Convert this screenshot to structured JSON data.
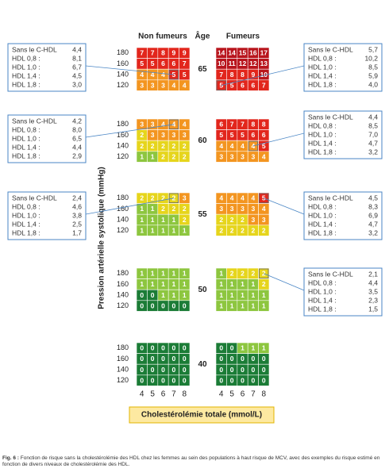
{
  "header": {
    "non_smokers": "Non fumeurs",
    "age": "Âge",
    "smokers": "Fumeurs"
  },
  "y_axis_label": "Pression artérielle systolique (mmHg)",
  "x_axis_label": "Cholestérolémie totale (mmol/L)",
  "sbp_levels": [
    180,
    160,
    140,
    120
  ],
  "cholesterol": [
    4,
    5,
    6,
    7,
    8
  ],
  "ages": [
    {
      "age": 65,
      "non_smokers": [
        [
          7,
          7,
          8,
          9,
          9
        ],
        [
          5,
          5,
          6,
          6,
          7
        ],
        [
          4,
          4,
          4,
          5,
          5
        ],
        [
          3,
          3,
          3,
          4,
          4
        ]
      ],
      "smokers": [
        [
          14,
          14,
          15,
          16,
          17
        ],
        [
          10,
          11,
          12,
          12,
          13
        ],
        [
          7,
          8,
          8,
          9,
          10
        ],
        [
          5,
          5,
          6,
          6,
          7
        ]
      ],
      "non_smokers_callout": [
        [
          "Sans le C-HDL",
          "4,4"
        ],
        [
          "HDL 0,8 :",
          "8,1"
        ],
        [
          "HDL 1,0 :",
          "6,7"
        ],
        [
          "HDL 1,4 :",
          "4,5"
        ],
        [
          "HDL 1,8 :",
          "3,0"
        ]
      ],
      "smokers_callout": [
        [
          "Sans le C-HDL",
          "5,7"
        ],
        [
          "HDL 0,8 :",
          "10,2"
        ],
        [
          "HDL 1,0 :",
          "8,5"
        ],
        [
          "HDL 1,4 :",
          "5,9"
        ],
        [
          "HDL 1,8 :",
          "4,0"
        ]
      ]
    },
    {
      "age": 60,
      "non_smokers": [
        [
          3,
          3,
          4,
          4,
          4
        ],
        [
          2,
          3,
          3,
          3,
          3
        ],
        [
          2,
          2,
          2,
          2,
          2
        ],
        [
          1,
          1,
          2,
          2,
          2
        ]
      ],
      "smokers": [
        [
          6,
          7,
          7,
          8,
          8
        ],
        [
          5,
          5,
          5,
          6,
          6
        ],
        [
          4,
          4,
          4,
          4,
          5
        ],
        [
          3,
          3,
          3,
          3,
          4
        ]
      ],
      "non_smokers_callout": [
        [
          "Sans le C-HDL",
          "4,2"
        ],
        [
          "HDL 0,8 :",
          "8,0"
        ],
        [
          "HDL 1,0 :",
          "6,5"
        ],
        [
          "HDL 1,4 :",
          "4,4"
        ],
        [
          "HDL 1,8 :",
          "2,9"
        ]
      ],
      "smokers_callout": [
        [
          "Sans le C-HDL",
          "4,4"
        ],
        [
          "HDL 0,8 :",
          "8,5"
        ],
        [
          "HDL 1,0 :",
          "7,0"
        ],
        [
          "HDL 1,4 :",
          "4,7"
        ],
        [
          "HDL 1,8 :",
          "3,2"
        ]
      ]
    },
    {
      "age": 55,
      "non_smokers": [
        [
          2,
          2,
          2,
          2,
          3
        ],
        [
          1,
          1,
          2,
          2,
          2
        ],
        [
          1,
          1,
          1,
          1,
          2
        ],
        [
          1,
          1,
          1,
          1,
          1
        ]
      ],
      "smokers": [
        [
          4,
          4,
          4,
          4,
          5
        ],
        [
          3,
          3,
          3,
          3,
          4
        ],
        [
          2,
          2,
          2,
          3,
          3
        ],
        [
          2,
          2,
          2,
          2,
          2
        ]
      ],
      "non_smokers_callout": [
        [
          "Sans le C-HDL",
          "2,4"
        ],
        [
          "HDL 0,8 :",
          "4,6"
        ],
        [
          "HDL 1,0 :",
          "3,8"
        ],
        [
          "HDL 1,4 :",
          "2,5"
        ],
        [
          "HDL 1,8 :",
          "1,7"
        ]
      ],
      "smokers_callout": [
        [
          "Sans le C-HDL",
          "4,5"
        ],
        [
          "HDL 0,8 :",
          "8,3"
        ],
        [
          "HDL 1,0 :",
          "6,9"
        ],
        [
          "HDL 1,4 :",
          "4,7"
        ],
        [
          "HDL 1,8 :",
          "3,2"
        ]
      ]
    },
    {
      "age": 50,
      "non_smokers": [
        [
          1,
          1,
          1,
          1,
          1
        ],
        [
          1,
          1,
          1,
          1,
          1
        ],
        [
          0,
          0,
          1,
          1,
          1
        ],
        [
          0,
          0,
          0,
          0,
          0
        ]
      ],
      "smokers": [
        [
          1,
          2,
          2,
          2,
          2
        ],
        [
          1,
          1,
          1,
          1,
          2
        ],
        [
          1,
          1,
          1,
          1,
          1
        ],
        [
          1,
          1,
          1,
          1,
          1
        ]
      ],
      "smokers_callout": [
        [
          "Sans le C-HDL",
          "2,1"
        ],
        [
          "HDL 0,8 :",
          "4,4"
        ],
        [
          "HDL 1,0 :",
          "3,5"
        ],
        [
          "HDL 1,4 :",
          "2,3"
        ],
        [
          "HDL 1,8 :",
          "1,5"
        ]
      ]
    },
    {
      "age": 40,
      "non_smokers": [
        [
          0,
          0,
          0,
          0,
          0
        ],
        [
          0,
          0,
          0,
          0,
          0
        ],
        [
          0,
          0,
          0,
          0,
          0
        ],
        [
          0,
          0,
          0,
          0,
          0
        ]
      ],
      "smokers": [
        [
          0,
          0,
          1,
          1,
          1
        ],
        [
          0,
          0,
          0,
          0,
          0
        ],
        [
          0,
          0,
          0,
          0,
          0
        ],
        [
          0,
          0,
          0,
          0,
          0
        ]
      ]
    }
  ],
  "caption": {
    "label": "Fig. 6 :",
    "text": "Fonction de risque sans la cholestérolémie des HDL chez les femmes au sein des populations à haut risque de MCV, avec des exemples du risque estimé en fonction de divers niveaux de cholestérolémie des HDL."
  }
}
